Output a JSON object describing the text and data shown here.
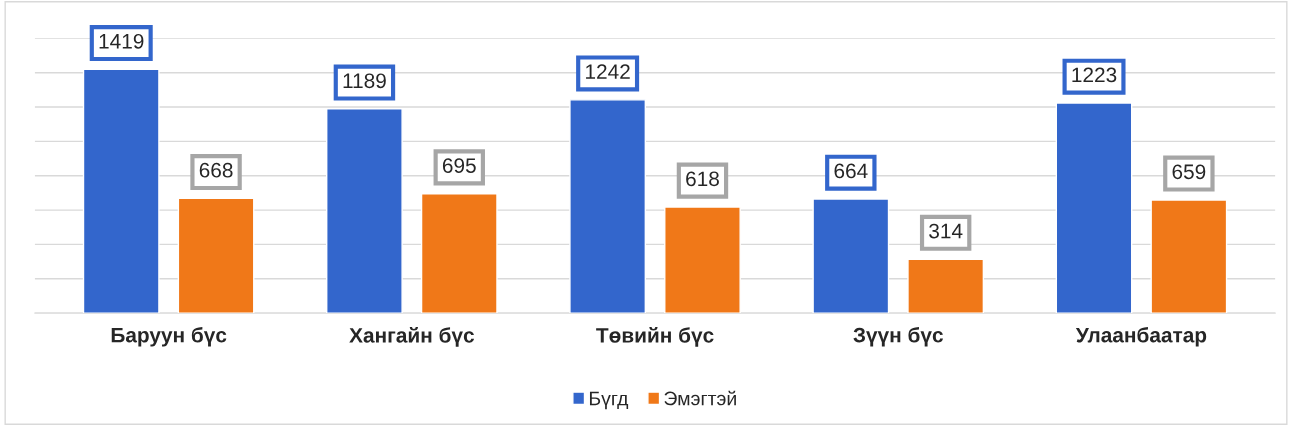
{
  "chart_data": {
    "type": "bar",
    "categories": [
      "Баруун бүс",
      "Хангайн бүс",
      "Төвийн бүс",
      "Зүүн бүс",
      "Улаанбаатар"
    ],
    "series": [
      {
        "name": "Бүгд",
        "color": "#3366cc",
        "values": [
          1419,
          1189,
          1242,
          664,
          1223
        ]
      },
      {
        "name": "Эмэгтэй",
        "color": "#f07818",
        "values": [
          668,
          695,
          618,
          314,
          659
        ]
      }
    ],
    "ylim": [
      0,
      1600
    ],
    "yticks": [
      {
        "value": 0,
        "label": null
      },
      {
        "value": 200,
        "label": null
      },
      {
        "value": 400,
        "label": null
      },
      {
        "value": 600,
        "label": null
      },
      {
        "value": 800,
        "label": null
      },
      {
        "value": 1000,
        "label": null
      },
      {
        "value": 1200,
        "label": null
      },
      {
        "value": 1400,
        "label": null
      },
      {
        "value": 1600,
        "label": null
      }
    ],
    "grid": "y",
    "legend": "bottom",
    "data_labels": true
  }
}
